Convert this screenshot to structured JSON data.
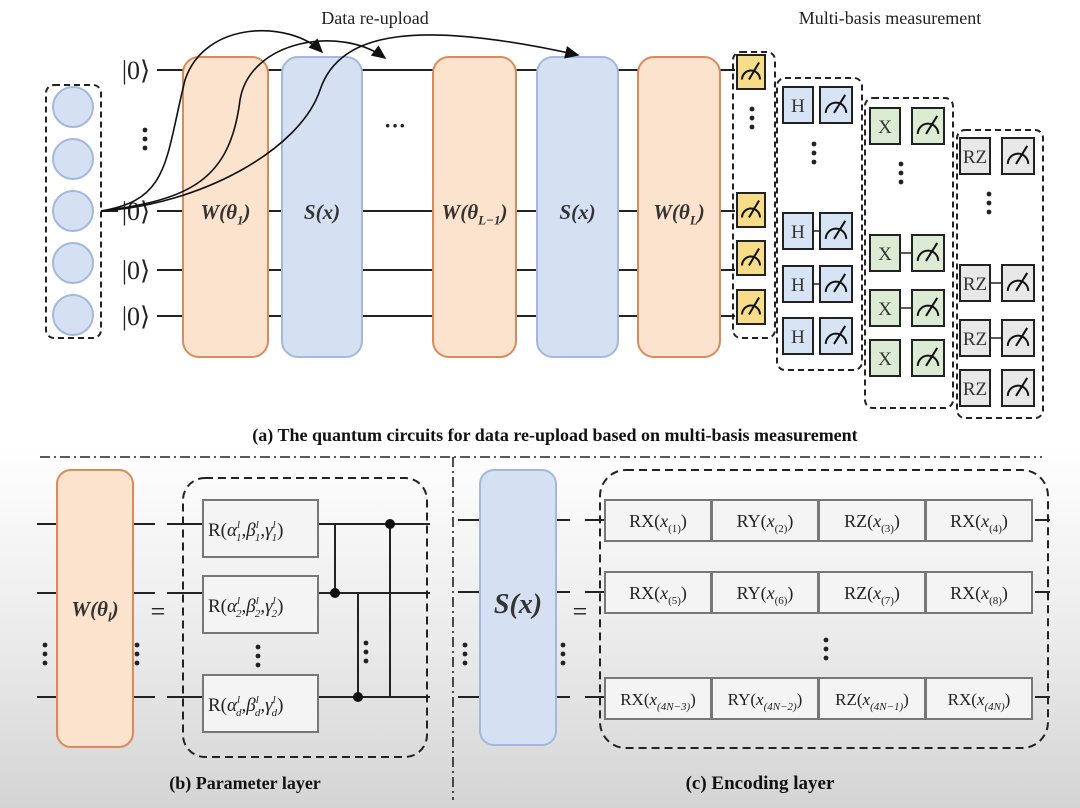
{
  "top": {
    "data_reupload_label": "Data re-upload",
    "multibasis_label": "Multi-basis measurement",
    "qubit_labels": [
      "|0⟩",
      "|0⟩",
      "|0⟩",
      "|0⟩"
    ],
    "ellipsis": "⋮",
    "hdots": "···",
    "layers": [
      {
        "type": "W",
        "base": "W(θ",
        "sub": "1",
        "close": ")"
      },
      {
        "type": "S",
        "base": "S(x)",
        "sub": "",
        "close": ""
      },
      {
        "type": "W",
        "base": "W(θ",
        "sub": "L−1",
        "close": ")"
      },
      {
        "type": "S",
        "base": "S(x)",
        "sub": "",
        "close": ""
      },
      {
        "type": "W",
        "base": "W(θ",
        "sub": "L",
        "close": ")"
      }
    ],
    "measurement_columns": [
      {
        "gate": "",
        "fill": "#f7dc8a"
      },
      {
        "gate": "H",
        "fill": "#d6e4f5"
      },
      {
        "gate": "X",
        "fill": "#dcebd3"
      },
      {
        "gate": "RZ",
        "fill": "#e8e8e8"
      }
    ],
    "caption": "(a) The quantum circuits for data re-upload based on multi-basis measurement"
  },
  "parameter_layer": {
    "block": {
      "base": "W(θ",
      "sub": "l",
      "close": ")"
    },
    "equals": "=",
    "rotations": [
      {
        "prefix": "R(",
        "params": [
          "α",
          "β",
          "γ"
        ],
        "sup": "l",
        "sub": "1"
      },
      {
        "prefix": "R(",
        "params": [
          "α",
          "β",
          "γ"
        ],
        "sup": "l",
        "sub": "2"
      },
      {
        "prefix": "R(",
        "params": [
          "α",
          "β",
          "γ"
        ],
        "sup": "l",
        "sub": "d"
      }
    ],
    "caption": "(b) Parameter layer"
  },
  "encoding_layer": {
    "block": "S(x)",
    "equals": "=",
    "var": "x",
    "rows": [
      [
        {
          "op": "RX",
          "sub": "(1)"
        },
        {
          "op": "RY",
          "sub": "(2)"
        },
        {
          "op": "RZ",
          "sub": "(3)"
        },
        {
          "op": "RX",
          "sub": "(4)"
        }
      ],
      [
        {
          "op": "RX",
          "sub": "(5)"
        },
        {
          "op": "RY",
          "sub": "(6)"
        },
        {
          "op": "RZ",
          "sub": "(7)"
        },
        {
          "op": "RX",
          "sub": "(8)"
        }
      ],
      [
        {
          "op": "RX",
          "sub": "(4N−3)"
        },
        {
          "op": "RY",
          "sub": "(4N−2)"
        },
        {
          "op": "RZ",
          "sub": "(4N−1)"
        },
        {
          "op": "RX",
          "sub": "(4N)"
        }
      ]
    ],
    "caption": "(c) Encoding layer"
  },
  "colors": {
    "w_fill": "#fce3cd",
    "w_stroke": "#d98b5c",
    "s_fill": "#d5e0f3",
    "s_stroke": "#a3b8dc",
    "circle_fill": "#d5e0f3",
    "circle_stroke": "#a3b8dc"
  }
}
